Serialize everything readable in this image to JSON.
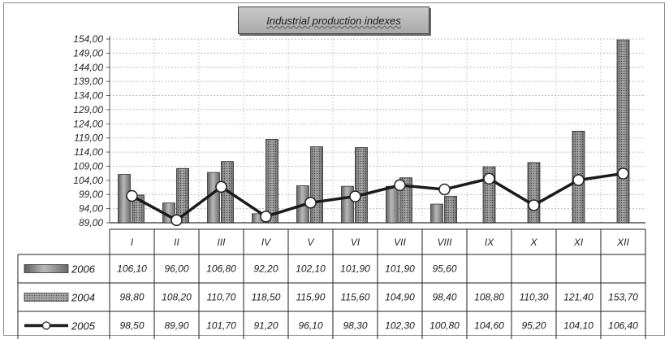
{
  "chart_data": {
    "type": "bar",
    "title": "Industrial production indexes",
    "categories": [
      "I",
      "II",
      "III",
      "IV",
      "V",
      "VI",
      "VII",
      "VIII",
      "IX",
      "X",
      "XI",
      "XII"
    ],
    "series": [
      {
        "name": "2006",
        "render": "bar-gradient",
        "values": [
          106.1,
          96.0,
          106.8,
          92.2,
          102.1,
          101.9,
          101.9,
          95.6,
          null,
          null,
          null,
          null
        ],
        "labels": [
          "106,10",
          "96,00",
          "106,80",
          "92,20",
          "102,10",
          "101,90",
          "101,90",
          "95,60",
          "",
          "",
          "",
          ""
        ],
        "color": "#8c8c8c"
      },
      {
        "name": "2004",
        "render": "bar-dotted",
        "values": [
          98.8,
          108.2,
          110.7,
          118.5,
          115.9,
          115.6,
          104.9,
          98.4,
          108.8,
          110.3,
          121.4,
          153.7
        ],
        "labels": [
          "98,80",
          "108,20",
          "110,70",
          "118,50",
          "115,90",
          "115,60",
          "104,90",
          "98,40",
          "108,80",
          "110,30",
          "121,40",
          "153,70"
        ],
        "color": "#7a7a7a"
      },
      {
        "name": "2005",
        "render": "line-marker",
        "values": [
          98.5,
          89.9,
          101.7,
          91.2,
          96.1,
          98.3,
          102.3,
          100.8,
          104.6,
          95.2,
          104.1,
          106.4
        ],
        "labels": [
          "98,50",
          "89,90",
          "101,70",
          "91,20",
          "96,10",
          "98,30",
          "102,30",
          "100,80",
          "104,60",
          "95,20",
          "104,10",
          "106,40"
        ],
        "color": "#1a1a1a"
      }
    ],
    "ylim": [
      89,
      154
    ],
    "yticks": [
      89,
      94,
      99,
      104,
      109,
      114,
      119,
      124,
      129,
      134,
      139,
      144,
      149,
      154
    ],
    "ytick_labels": [
      "89,00",
      "94,00",
      "99,00",
      "104,00",
      "109,00",
      "114,00",
      "119,00",
      "124,00",
      "129,00",
      "134,00",
      "139,00",
      "144,00",
      "149,00",
      "154,00"
    ],
    "grid": true,
    "legend": "data-table"
  }
}
